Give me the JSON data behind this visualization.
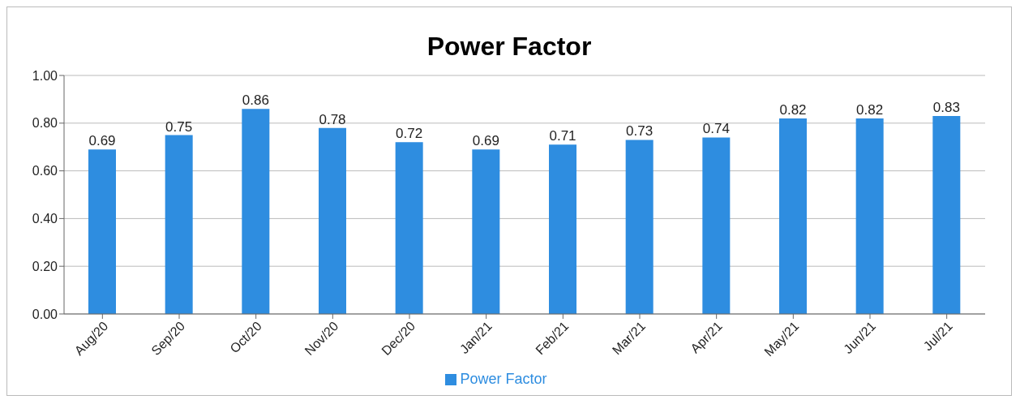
{
  "chart_data": {
    "type": "bar",
    "title": "Power Factor",
    "categories": [
      "Aug/20",
      "Sep/20",
      "Oct/20",
      "Nov/20",
      "Dec/20",
      "Jan/21",
      "Feb/21",
      "Mar/21",
      "Apr/21",
      "May/21",
      "Jun/21",
      "Jul/21"
    ],
    "series": [
      {
        "name": "Power Factor",
        "color": "#2e8de0",
        "values": [
          0.69,
          0.75,
          0.86,
          0.78,
          0.72,
          0.69,
          0.71,
          0.73,
          0.74,
          0.82,
          0.82,
          0.83
        ]
      }
    ],
    "ylim": [
      0,
      1
    ],
    "yticks": [
      {
        "value": 0,
        "label": "0.00"
      },
      {
        "value": 0.2,
        "label": "0.20"
      },
      {
        "value": 0.4,
        "label": "0.40"
      },
      {
        "value": 0.6,
        "label": "0.60"
      },
      {
        "value": 0.8,
        "label": "0.80"
      },
      {
        "value": 1,
        "label": "1.00"
      }
    ],
    "grid": "y",
    "legend": "bottom",
    "data_labels": true
  }
}
